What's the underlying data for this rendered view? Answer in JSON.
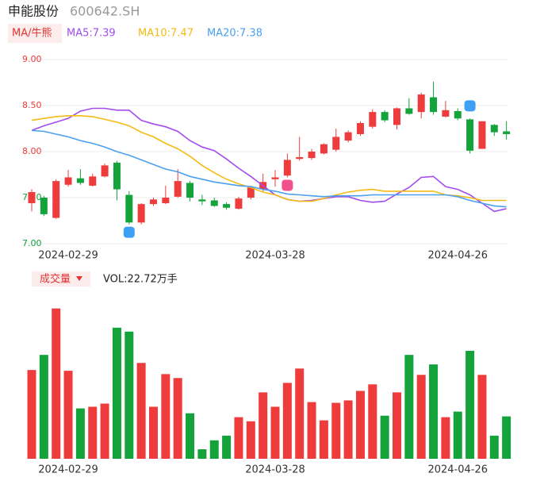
{
  "header": {
    "name": "申能股份",
    "code": "600642.SH"
  },
  "chart_data": [
    {
      "type": "candlestick",
      "indicator_label": "MA/牛熊",
      "up_color": "#ee3b3b",
      "down_color": "#13a33a",
      "ylim": [
        7.0,
        9.0
      ],
      "yticks": [
        {
          "value": 9.0,
          "label": "9.00"
        },
        {
          "value": 8.5,
          "label": "8.50"
        },
        {
          "value": 8.0,
          "label": "8.00"
        },
        {
          "value": 7.5,
          "label": "7.50"
        },
        {
          "value": 7.0,
          "label": "7.00"
        }
      ],
      "grid": true,
      "categories": [
        null,
        null,
        null,
        "2024-02-29",
        null,
        null,
        null,
        null,
        null,
        null,
        null,
        null,
        null,
        null,
        null,
        null,
        null,
        null,
        null,
        null,
        "2024-03-28",
        null,
        null,
        null,
        null,
        null,
        null,
        null,
        null,
        null,
        null,
        null,
        null,
        null,
        null,
        "2024-04-26",
        null,
        null,
        null,
        null
      ],
      "open": [
        7.44,
        7.5,
        7.28,
        7.64,
        7.71,
        7.63,
        7.73,
        7.88,
        7.53,
        7.23,
        7.43,
        7.44,
        7.51,
        7.66,
        7.48,
        7.47,
        7.43,
        7.38,
        7.5,
        7.59,
        7.7,
        7.74,
        7.92,
        7.93,
        7.98,
        8.02,
        8.12,
        8.19,
        8.27,
        8.43,
        8.29,
        8.47,
        8.43,
        8.59,
        8.38,
        8.44,
        8.35,
        8.03,
        8.29,
        8.22
      ],
      "high": [
        7.59,
        7.52,
        7.7,
        7.8,
        7.81,
        7.76,
        7.87,
        7.9,
        7.57,
        7.44,
        7.5,
        7.63,
        7.81,
        7.68,
        7.53,
        7.5,
        7.45,
        7.51,
        7.63,
        7.76,
        7.8,
        7.98,
        8.16,
        8.03,
        8.09,
        8.25,
        8.23,
        8.33,
        8.46,
        8.45,
        8.48,
        8.58,
        8.64,
        8.76,
        8.55,
        8.47,
        8.36,
        8.33,
        8.3,
        8.33
      ],
      "low": [
        7.35,
        7.3,
        7.27,
        7.62,
        7.64,
        7.62,
        7.72,
        7.47,
        7.21,
        7.21,
        7.41,
        7.43,
        7.5,
        7.46,
        7.42,
        7.4,
        7.37,
        7.37,
        7.48,
        7.57,
        7.62,
        7.72,
        7.9,
        7.91,
        7.97,
        8.0,
        8.1,
        8.17,
        8.25,
        8.32,
        8.24,
        8.4,
        8.36,
        8.4,
        8.37,
        8.34,
        7.98,
        8.03,
        8.17,
        8.13
      ],
      "close": [
        7.56,
        7.32,
        7.68,
        7.72,
        7.66,
        7.73,
        7.85,
        7.59,
        7.23,
        7.43,
        7.48,
        7.5,
        7.68,
        7.5,
        7.46,
        7.41,
        7.39,
        7.49,
        7.61,
        7.67,
        7.72,
        7.91,
        7.94,
        8.0,
        8.08,
        8.16,
        8.21,
        8.31,
        8.43,
        8.34,
        8.47,
        8.41,
        8.62,
        8.43,
        8.45,
        8.36,
        8.01,
        8.33,
        8.21,
        8.19
      ],
      "series": [
        {
          "name": "MA5:7.39",
          "color": "#a24cf0",
          "values": [
            8.23,
            8.28,
            8.32,
            8.36,
            8.44,
            8.47,
            8.47,
            8.45,
            8.45,
            8.34,
            8.3,
            8.27,
            8.22,
            8.12,
            8.05,
            8.01,
            7.92,
            7.82,
            7.73,
            7.63,
            7.53,
            7.48,
            7.46,
            7.47,
            7.49,
            7.51,
            7.51,
            7.47,
            7.45,
            7.46,
            7.54,
            7.61,
            7.72,
            7.73,
            7.62,
            7.59,
            7.53,
            7.44,
            7.35,
            7.38
          ]
        },
        {
          "name": "MA10:7.47",
          "color": "#f4bb14",
          "values": [
            8.34,
            8.36,
            8.38,
            8.39,
            8.39,
            8.38,
            8.35,
            8.32,
            8.28,
            8.21,
            8.16,
            8.09,
            8.03,
            7.95,
            7.85,
            7.77,
            7.7,
            7.65,
            7.61,
            7.56,
            7.53,
            7.48,
            7.46,
            7.46,
            7.49,
            7.53,
            7.56,
            7.58,
            7.59,
            7.57,
            7.57,
            7.57,
            7.57,
            7.57,
            7.53,
            7.52,
            7.5,
            7.47,
            7.47,
            7.47
          ]
        },
        {
          "name": "MA20:7.38",
          "color": "#4aa0ee",
          "values": [
            8.23,
            8.22,
            8.19,
            8.16,
            8.12,
            8.09,
            8.05,
            8.0,
            7.96,
            7.91,
            7.86,
            7.81,
            7.78,
            7.73,
            7.7,
            7.67,
            7.65,
            7.63,
            7.62,
            7.59,
            7.57,
            7.54,
            7.53,
            7.52,
            7.51,
            7.52,
            7.52,
            7.52,
            7.53,
            7.53,
            7.53,
            7.53,
            7.53,
            7.53,
            7.53,
            7.51,
            7.47,
            7.44,
            7.41,
            7.4
          ]
        }
      ]
    },
    {
      "type": "bar",
      "title": "成交量",
      "value_label": "VOL:22.72万手",
      "ylim": [
        0,
        83
      ],
      "categories": [
        null,
        null,
        null,
        "2024-02-29",
        null,
        null,
        null,
        null,
        null,
        null,
        null,
        null,
        null,
        null,
        null,
        null,
        null,
        null,
        null,
        null,
        "2024-03-28",
        null,
        null,
        null,
        null,
        null,
        null,
        null,
        null,
        null,
        null,
        null,
        null,
        null,
        null,
        "2024-04-26",
        null,
        null,
        null,
        null
      ],
      "values": [
        47.6,
        55.7,
        80.6,
        47.2,
        27.0,
        27.9,
        29.6,
        70.3,
        68.2,
        51.4,
        27.9,
        45.4,
        43.3,
        24.4,
        5.1,
        9.9,
        12.4,
        22.3,
        20.1,
        35.6,
        27.9,
        40.7,
        48.4,
        30.4,
        20.6,
        30.0,
        31.3,
        36.4,
        39.9,
        23.1,
        35.6,
        55.7,
        45.0,
        50.6,
        22.3,
        25.3,
        57.9,
        45.0,
        12.4,
        22.72
      ]
    }
  ]
}
